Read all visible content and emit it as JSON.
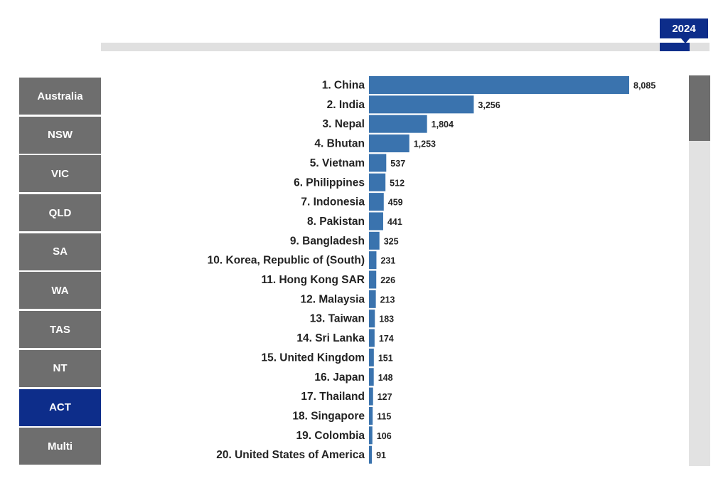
{
  "timeline": {
    "year": "2024"
  },
  "states": [
    {
      "label": "Australia",
      "active": false
    },
    {
      "label": "NSW",
      "active": false
    },
    {
      "label": "VIC",
      "active": false
    },
    {
      "label": "QLD",
      "active": false
    },
    {
      "label": "SA",
      "active": false
    },
    {
      "label": "WA",
      "active": false
    },
    {
      "label": "TAS",
      "active": false
    },
    {
      "label": "NT",
      "active": false
    },
    {
      "label": "ACT",
      "active": true
    },
    {
      "label": "Multi",
      "active": false
    }
  ],
  "colors": {
    "bar": "#3a73ae",
    "active": "#0d2d8a",
    "inactive": "#6e6e6e"
  },
  "chart_data": {
    "type": "bar",
    "orientation": "horizontal",
    "categories": [
      "1. China",
      "2. India",
      "3. Nepal",
      "4. Bhutan",
      "5. Vietnam",
      "6. Philippines",
      "7. Indonesia",
      "8. Pakistan",
      "9. Bangladesh",
      "10. Korea, Republic of (South)",
      "11. Hong Kong SAR",
      "12. Malaysia",
      "13. Taiwan",
      "14. Sri Lanka",
      "15. United Kingdom",
      "16. Japan",
      "17. Thailand",
      "18. Singapore",
      "19. Colombia",
      "20. United States of America"
    ],
    "values": [
      8085,
      3256,
      1804,
      1253,
      537,
      512,
      459,
      441,
      325,
      231,
      226,
      213,
      183,
      174,
      151,
      148,
      127,
      115,
      106,
      91
    ],
    "value_labels": [
      "8,085",
      "3,256",
      "1,804",
      "1,253",
      "537",
      "512",
      "459",
      "441",
      "325",
      "231",
      "226",
      "213",
      "183",
      "174",
      "151",
      "148",
      "127",
      "115",
      "106",
      "91"
    ],
    "xlim": [
      0,
      8085
    ],
    "grid": false,
    "legend": "none"
  }
}
